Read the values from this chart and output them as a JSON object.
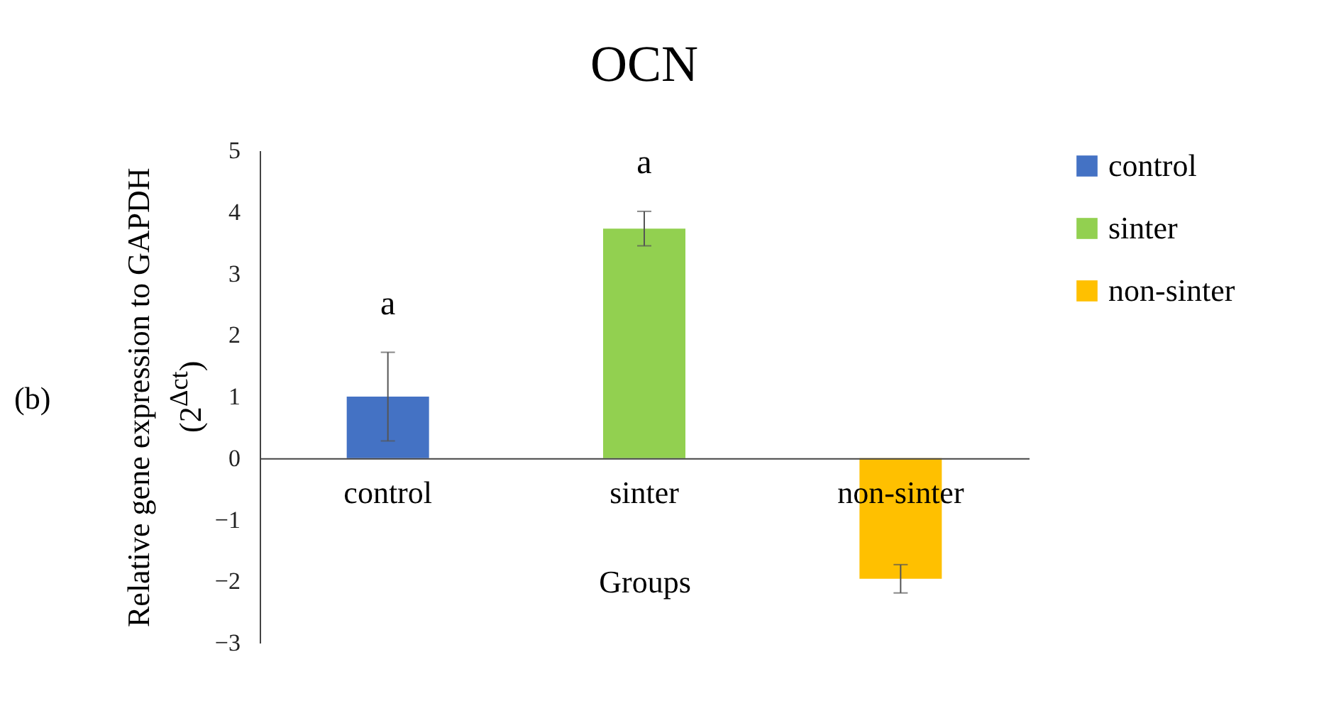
{
  "chart_data": {
    "type": "bar",
    "title": "OCN",
    "xlabel": "Groups",
    "ylabel": "Relative gene expression to GAPDH (2$^{Δct}$)",
    "categories": [
      "control",
      "sinter",
      "non-sinter"
    ],
    "series": [
      {
        "name": "control",
        "color": "#4472c4",
        "values": [
          1.0,
          null,
          null
        ],
        "errors": [
          0.72,
          null,
          null
        ]
      },
      {
        "name": "sinter",
        "color": "#92d050",
        "values": [
          null,
          3.73,
          null
        ],
        "errors": [
          null,
          0.28,
          null
        ]
      },
      {
        "name": "non-sinter",
        "color": "#ffc000",
        "values": [
          null,
          null,
          -1.96
        ],
        "errors": [
          null,
          null,
          0.23
        ]
      }
    ],
    "ylim": [
      -3,
      5
    ],
    "yticks": [
      -3,
      -2,
      -1,
      0,
      1,
      2,
      3,
      4,
      5
    ],
    "legend": "right",
    "annotations": [
      "(b)",
      "a",
      "a"
    ]
  }
}
